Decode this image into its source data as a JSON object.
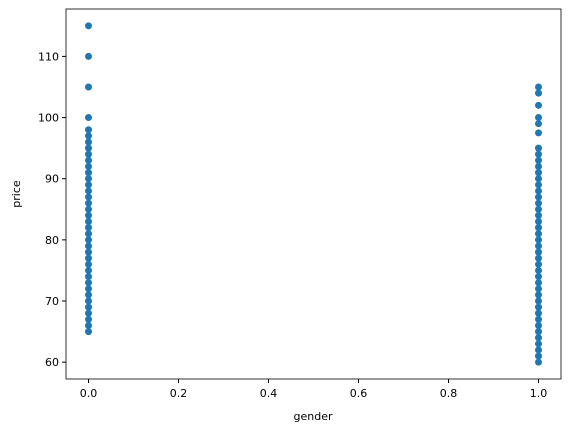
{
  "chart_data": {
    "type": "scatter",
    "xlabel": "gender",
    "ylabel": "price",
    "color": "#1f77b4",
    "x": [
      0,
      0,
      0,
      0,
      0,
      0,
      0,
      0,
      0,
      0,
      0,
      0,
      0,
      0,
      0,
      0,
      0,
      0,
      0,
      0,
      0,
      0,
      0,
      0,
      0,
      0,
      0,
      0,
      0,
      0,
      0,
      0,
      0,
      0,
      0,
      0,
      0,
      0,
      1,
      1,
      1,
      1,
      1,
      1,
      1,
      1,
      1,
      1,
      1,
      1,
      1,
      1,
      1,
      1,
      1,
      1,
      1,
      1,
      1,
      1,
      1,
      1,
      1,
      1,
      1,
      1,
      1,
      1,
      1,
      1,
      1,
      1,
      1,
      1,
      1,
      1,
      1,
      1,
      1,
      1
    ],
    "y": [
      115,
      110,
      105,
      100,
      98,
      97,
      96,
      95,
      94,
      93,
      92,
      91,
      90,
      89,
      88,
      87,
      86,
      85,
      84,
      83,
      82,
      81,
      80,
      79,
      78,
      77,
      76,
      75,
      74,
      73,
      72,
      71,
      70,
      69,
      68,
      67,
      66,
      65,
      105,
      104,
      102,
      100,
      99,
      97.5,
      95,
      94,
      93,
      92,
      91,
      90,
      89,
      88,
      87,
      86,
      85,
      84,
      83,
      82,
      81,
      80,
      79,
      78,
      77,
      76,
      75,
      74,
      73,
      72,
      71,
      70,
      69,
      68,
      67,
      66,
      65,
      64,
      63,
      62,
      61,
      60
    ],
    "xlim": [
      -0.05,
      1.05
    ],
    "ylim": [
      57.25,
      117.75
    ],
    "xticks": [
      {
        "value": 0,
        "label": "0.0"
      },
      {
        "value": 0.2,
        "label": "0.2"
      },
      {
        "value": 0.4,
        "label": "0.4"
      },
      {
        "value": 0.6,
        "label": "0.6"
      },
      {
        "value": 0.8,
        "label": "0.8"
      },
      {
        "value": 1,
        "label": "1.0"
      }
    ],
    "yticks": [
      60,
      70,
      80,
      90,
      100,
      110
    ]
  }
}
